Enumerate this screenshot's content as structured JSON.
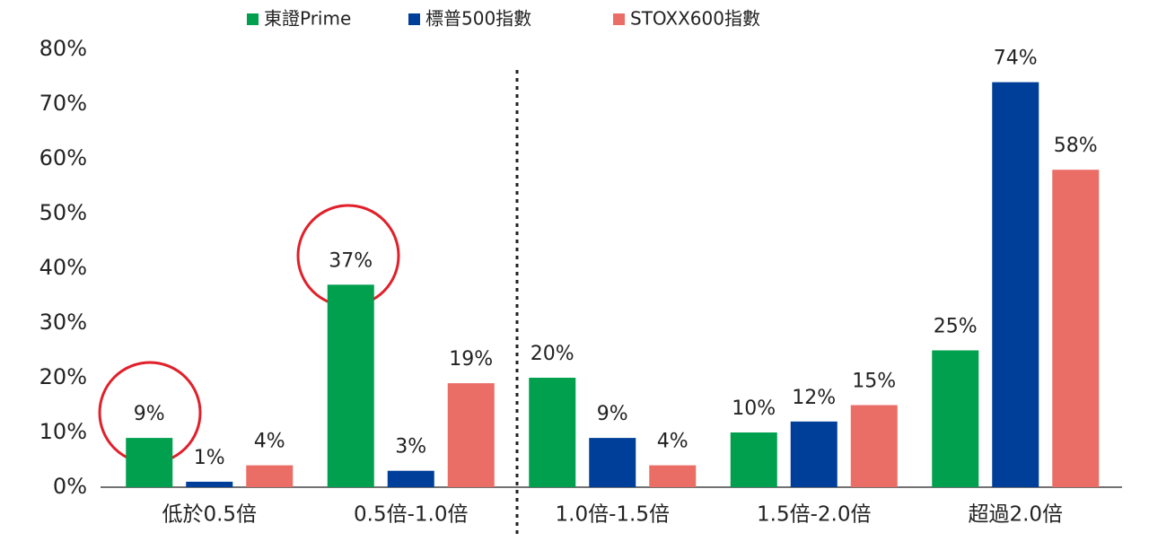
{
  "chart_data": {
    "type": "bar",
    "categories": [
      "低於0.5倍",
      "0.5倍-1.0倍",
      "1.0倍-1.5倍",
      "1.5倍-2.0倍",
      "超過2.0倍"
    ],
    "series": [
      {
        "name": "東證Prime",
        "color": "#00a04f",
        "values": [
          9,
          37,
          20,
          10,
          25
        ],
        "value_labels": [
          "9%",
          "37%",
          "20%",
          "10%",
          "25%"
        ]
      },
      {
        "name": "標普500指數",
        "color": "#003f99",
        "values": [
          1,
          3,
          9,
          12,
          74
        ],
        "value_labels": [
          "1%",
          "3%",
          "9%",
          "12%",
          "74%"
        ]
      },
      {
        "name": "STOXX600指數",
        "color": "#eb6e66",
        "values": [
          4,
          19,
          4,
          15,
          58
        ],
        "value_labels": [
          "4%",
          "19%",
          "4%",
          "15%",
          "58%"
        ]
      }
    ],
    "ylim": [
      0,
      80
    ],
    "yticks": [
      {
        "value": 0,
        "label": "0%"
      },
      {
        "value": 10,
        "label": "10%"
      },
      {
        "value": 20,
        "label": "20%"
      },
      {
        "value": 30,
        "label": "30%"
      },
      {
        "value": 40,
        "label": "40%"
      },
      {
        "value": 50,
        "label": "50%"
      },
      {
        "value": 60,
        "label": "60%"
      },
      {
        "value": 70,
        "label": "70%"
      },
      {
        "value": 80,
        "label": "80%"
      }
    ],
    "grid": false
  }
}
